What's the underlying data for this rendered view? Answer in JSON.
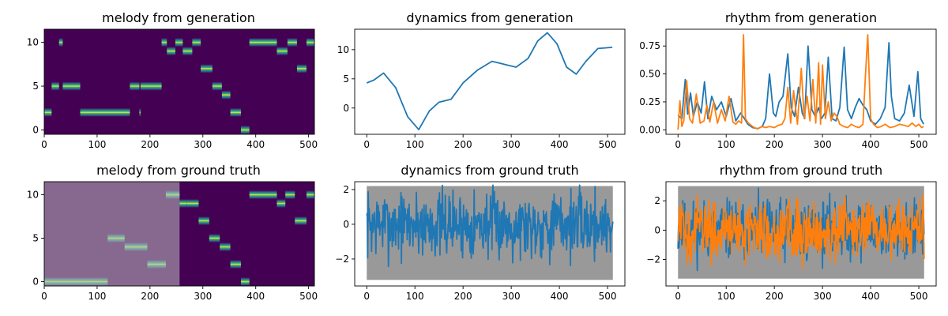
{
  "chart_data": [
    {
      "type": "heatmap",
      "title": "melody from generation",
      "xlim": [
        0,
        511
      ],
      "ylim": [
        -0.5,
        11.5
      ],
      "xticks": [
        "0",
        "100",
        "200",
        "300",
        "400",
        "500"
      ],
      "yticks": [
        "0",
        "5",
        "10"
      ],
      "colormap": "viridis",
      "active_notes": [
        {
          "x0": 0,
          "x1": 14,
          "pitch": 2
        },
        {
          "x0": 14,
          "x1": 28,
          "pitch": 5
        },
        {
          "x0": 28,
          "x1": 35,
          "pitch": 10
        },
        {
          "x0": 35,
          "x1": 68,
          "pitch": 5
        },
        {
          "x0": 68,
          "x1": 162,
          "pitch": 2
        },
        {
          "x0": 162,
          "x1": 180,
          "pitch": 5
        },
        {
          "x0": 180,
          "x1": 182,
          "pitch": 2
        },
        {
          "x0": 182,
          "x1": 222,
          "pitch": 5
        },
        {
          "x0": 222,
          "x1": 232,
          "pitch": 10
        },
        {
          "x0": 232,
          "x1": 248,
          "pitch": 9
        },
        {
          "x0": 248,
          "x1": 262,
          "pitch": 10
        },
        {
          "x0": 262,
          "x1": 280,
          "pitch": 9
        },
        {
          "x0": 280,
          "x1": 296,
          "pitch": 10
        },
        {
          "x0": 296,
          "x1": 318,
          "pitch": 7
        },
        {
          "x0": 318,
          "x1": 336,
          "pitch": 5
        },
        {
          "x0": 336,
          "x1": 352,
          "pitch": 4
        },
        {
          "x0": 352,
          "x1": 372,
          "pitch": 2
        },
        {
          "x0": 372,
          "x1": 388,
          "pitch": 0
        },
        {
          "x0": 388,
          "x1": 440,
          "pitch": 10
        },
        {
          "x0": 440,
          "x1": 460,
          "pitch": 9
        },
        {
          "x0": 460,
          "x1": 478,
          "pitch": 10
        },
        {
          "x0": 478,
          "x1": 496,
          "pitch": 7
        },
        {
          "x0": 496,
          "x1": 511,
          "pitch": 10
        }
      ]
    },
    {
      "type": "line",
      "title": "dynamics from generation",
      "xlim": [
        -25,
        536
      ],
      "ylim": [
        -4.5,
        13.5
      ],
      "xticks": [
        "0",
        "100",
        "200",
        "300",
        "400",
        "500"
      ],
      "yticks": [
        "0",
        "5",
        "10"
      ],
      "series": [
        {
          "x": [
            0,
            15,
            35,
            60,
            85,
            108,
            130,
            150,
            175,
            200,
            230,
            260,
            290,
            310,
            335,
            355,
            375,
            395,
            415,
            435,
            455,
            480,
            510
          ],
          "values": [
            4.3,
            4.8,
            6.0,
            3.5,
            -1.5,
            -3.7,
            -0.5,
            1.0,
            1.5,
            4.3,
            6.5,
            8.0,
            7.4,
            7.0,
            8.5,
            11.5,
            12.9,
            11.0,
            7.0,
            5.8,
            8.0,
            10.2,
            10.4
          ]
        }
      ]
    },
    {
      "type": "line",
      "title": "rhythm from generation",
      "xlim": [
        -25,
        536
      ],
      "ylim": [
        -0.04,
        0.9
      ],
      "xticks": [
        "0",
        "100",
        "200",
        "300",
        "400",
        "500"
      ],
      "yticks": [
        "0.00",
        "0.25",
        "0.50",
        "0.75"
      ],
      "series": [
        {
          "x": [
            0,
            8,
            15,
            20,
            26,
            32,
            40,
            48,
            55,
            62,
            70,
            80,
            90,
            100,
            110,
            120,
            130,
            138,
            145,
            155,
            165,
            175,
            182,
            190,
            198,
            203,
            210,
            218,
            228,
            235,
            242,
            250,
            258,
            263,
            270,
            278,
            285,
            292,
            298,
            305,
            312,
            320,
            328,
            336,
            345,
            352,
            360,
            368,
            376,
            384,
            392,
            400,
            410,
            420,
            430,
            438,
            443,
            450,
            460,
            470,
            480,
            490,
            498,
            504,
            510
          ],
          "values": [
            0.13,
            0.1,
            0.45,
            0.14,
            0.33,
            0.12,
            0.25,
            0.15,
            0.43,
            0.1,
            0.3,
            0.18,
            0.25,
            0.12,
            0.28,
            0.08,
            0.15,
            0.1,
            0.05,
            0.02,
            0.01,
            0.03,
            0.1,
            0.5,
            0.15,
            0.12,
            0.25,
            0.3,
            0.68,
            0.2,
            0.12,
            0.38,
            0.15,
            0.1,
            0.75,
            0.18,
            0.12,
            0.2,
            0.1,
            0.15,
            0.65,
            0.1,
            0.08,
            0.2,
            0.74,
            0.18,
            0.1,
            0.2,
            0.28,
            0.22,
            0.18,
            0.08,
            0.05,
            0.1,
            0.2,
            0.78,
            0.3,
            0.1,
            0.08,
            0.15,
            0.4,
            0.12,
            0.52,
            0.1,
            0.05
          ]
        },
        {
          "x": [
            0,
            4,
            8,
            12,
            18,
            24,
            30,
            38,
            46,
            54,
            60,
            66,
            74,
            82,
            90,
            98,
            106,
            114,
            120,
            126,
            132,
            136,
            140,
            146,
            152,
            158,
            166,
            174,
            182,
            190,
            200,
            208,
            216,
            222,
            228,
            234,
            240,
            248,
            256,
            262,
            268,
            274,
            280,
            286,
            292,
            296,
            300,
            306,
            312,
            318,
            324,
            330,
            336,
            344,
            352,
            360,
            368,
            376,
            384,
            390,
            394,
            400,
            406,
            414,
            422,
            430,
            440,
            450,
            460,
            470,
            478,
            486,
            494,
            500,
            506,
            510
          ],
          "values": [
            0.0,
            0.26,
            0.03,
            0.08,
            0.44,
            0.1,
            0.06,
            0.32,
            0.06,
            0.08,
            0.22,
            0.07,
            0.25,
            0.06,
            0.18,
            0.08,
            0.3,
            0.07,
            0.05,
            0.08,
            0.06,
            0.85,
            0.1,
            0.06,
            0.04,
            0.02,
            0.01,
            0.03,
            0.02,
            0.03,
            0.02,
            0.04,
            0.05,
            0.1,
            0.38,
            0.06,
            0.35,
            0.05,
            0.55,
            0.1,
            0.3,
            0.08,
            0.45,
            0.06,
            0.6,
            0.05,
            0.58,
            0.1,
            0.25,
            0.08,
            0.15,
            0.12,
            0.05,
            0.03,
            0.02,
            0.05,
            0.03,
            0.02,
            0.05,
            0.55,
            0.85,
            0.1,
            0.05,
            0.02,
            0.03,
            0.05,
            0.02,
            0.03,
            0.05,
            0.04,
            0.03,
            0.06,
            0.03,
            0.05,
            0.02,
            0.03
          ]
        }
      ]
    },
    {
      "type": "heatmap",
      "title": "melody from ground truth",
      "xlim": [
        0,
        511
      ],
      "ylim": [
        -0.5,
        11.5
      ],
      "xticks": [
        "0",
        "100",
        "200",
        "300",
        "400",
        "500"
      ],
      "yticks": [
        "0",
        "5",
        "10"
      ],
      "colormap": "viridis",
      "masked_region": [
        0,
        256
      ],
      "active_notes": [
        {
          "x0": 0,
          "x1": 120,
          "pitch": 0
        },
        {
          "x0": 120,
          "x1": 152,
          "pitch": 5
        },
        {
          "x0": 152,
          "x1": 195,
          "pitch": 4
        },
        {
          "x0": 195,
          "x1": 230,
          "pitch": 2
        },
        {
          "x0": 230,
          "x1": 256,
          "pitch": 10
        },
        {
          "x0": 256,
          "x1": 270,
          "pitch": 9
        },
        {
          "x0": 270,
          "x1": 292,
          "pitch": 9
        },
        {
          "x0": 292,
          "x1": 312,
          "pitch": 7
        },
        {
          "x0": 312,
          "x1": 332,
          "pitch": 5
        },
        {
          "x0": 332,
          "x1": 352,
          "pitch": 4
        },
        {
          "x0": 352,
          "x1": 372,
          "pitch": 2
        },
        {
          "x0": 372,
          "x1": 388,
          "pitch": 0
        },
        {
          "x0": 388,
          "x1": 440,
          "pitch": 10
        },
        {
          "x0": 440,
          "x1": 456,
          "pitch": 9
        },
        {
          "x0": 456,
          "x1": 474,
          "pitch": 10
        },
        {
          "x0": 474,
          "x1": 496,
          "pitch": 7
        },
        {
          "x0": 496,
          "x1": 511,
          "pitch": 10
        }
      ]
    },
    {
      "type": "line",
      "title": "dynamics from ground truth",
      "xlim": [
        -25,
        536
      ],
      "ylim": [
        -3.55,
        2.45
      ],
      "xticks": [
        "0",
        "100",
        "200",
        "300",
        "400",
        "500"
      ],
      "yticks": [
        "−2",
        "0",
        "2"
      ],
      "gray_band": {
        "x": [
          0,
          511
        ],
        "y": [
          -3.2,
          2.2
        ]
      },
      "noise": {
        "seed": 7,
        "n": 512,
        "sigma": 0.95,
        "range": [
          -3.0,
          2.25
        ]
      },
      "series": [
        {
          "color": "#1f77b4"
        }
      ]
    },
    {
      "type": "line",
      "title": "rhythm from ground truth",
      "xlim": [
        -25,
        536
      ],
      "ylim": [
        -3.8,
        3.3
      ],
      "xticks": [
        "0",
        "100",
        "200",
        "300",
        "400",
        "500"
      ],
      "yticks": [
        "−2",
        "0",
        "2"
      ],
      "gray_band": {
        "x": [
          0,
          511
        ],
        "y": [
          -3.3,
          3.0
        ]
      },
      "noise": {
        "seed": 11,
        "n": 512,
        "sigma": 1.0,
        "range": [
          -3.3,
          3.0
        ]
      },
      "series": [
        {
          "color": "#1f77b4"
        },
        {
          "color": "#ff7f0e"
        }
      ]
    }
  ],
  "colors": {
    "blue": "#1f77b4",
    "orange": "#ff7f0e",
    "viridis_low": "#440154",
    "gray": "#999999"
  }
}
